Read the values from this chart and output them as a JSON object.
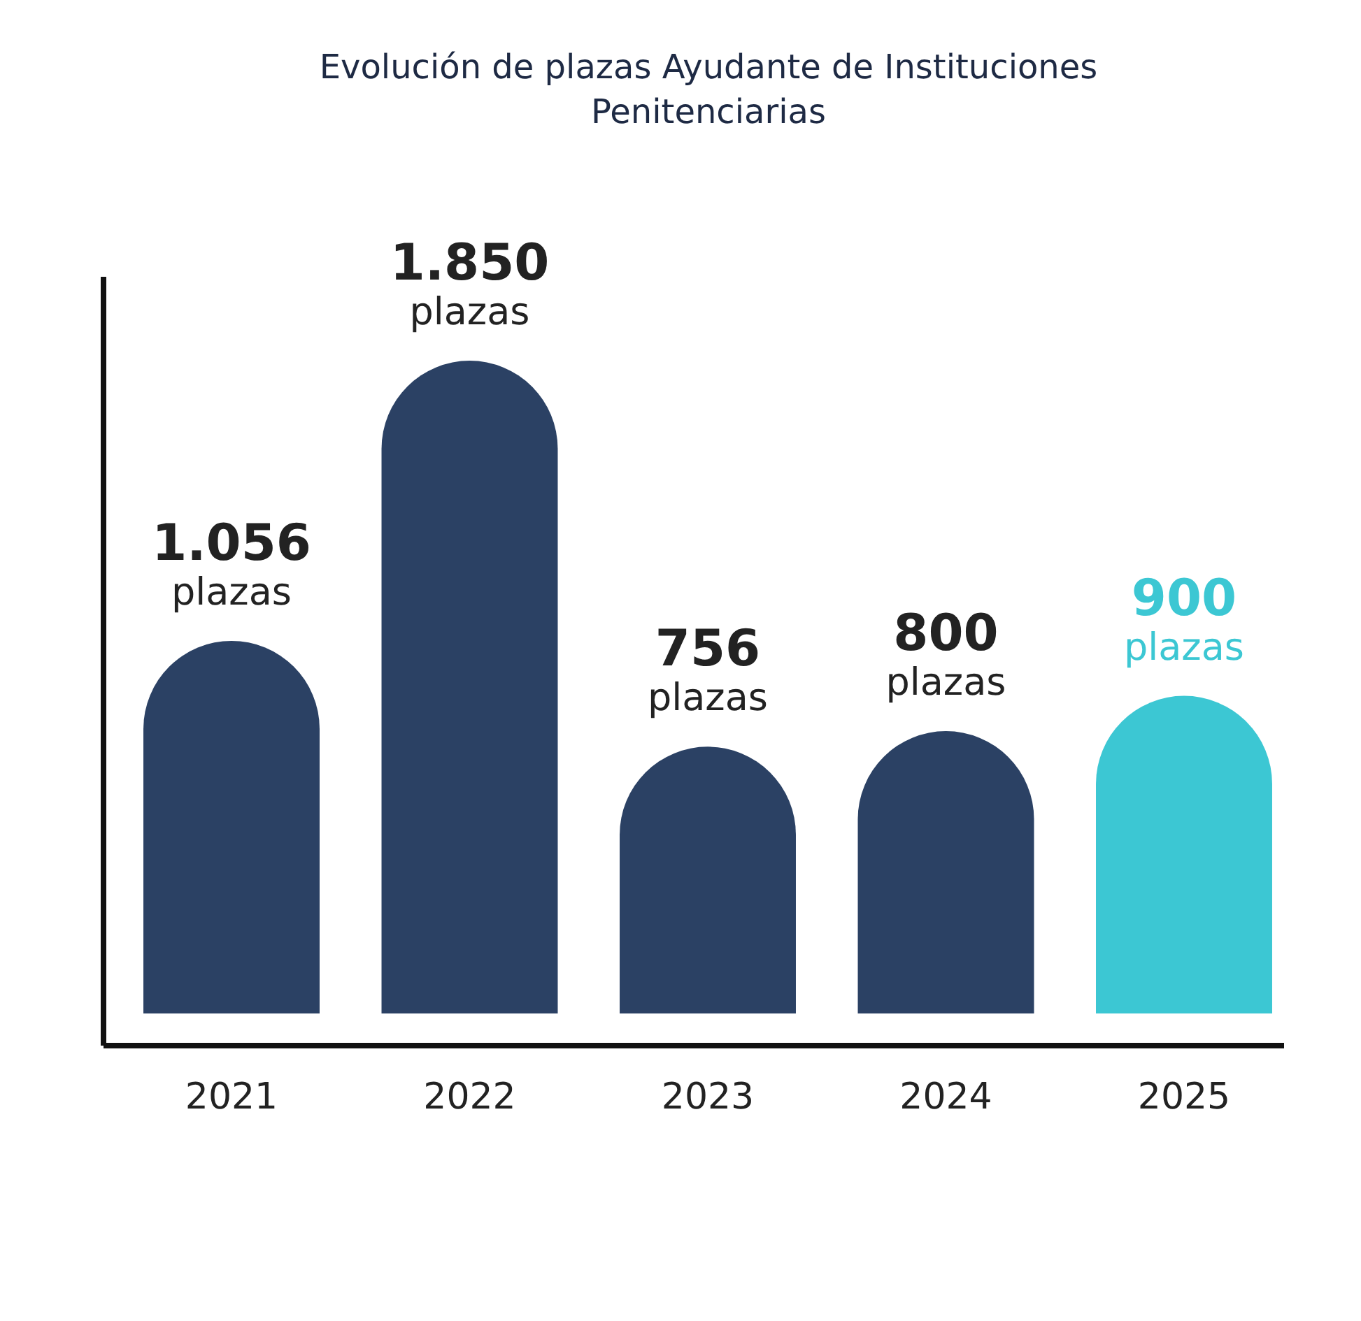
{
  "chart_data": {
    "type": "bar",
    "title": "Evolución de plazas Ayudante de Instituciones Penitenciarias",
    "categories": [
      "2021",
      "2022",
      "2023",
      "2024",
      "2025"
    ],
    "values": [
      1056,
      1850,
      756,
      800,
      900
    ],
    "colors": [
      "#2b4164",
      "#2b4164",
      "#2b4164",
      "#2b4164",
      "#3cc7d3"
    ],
    "value_labels": [
      "1.056 plazas",
      "1.850 plazas",
      "756 plazas",
      "800 plazas",
      "900 plazas"
    ]
  }
}
